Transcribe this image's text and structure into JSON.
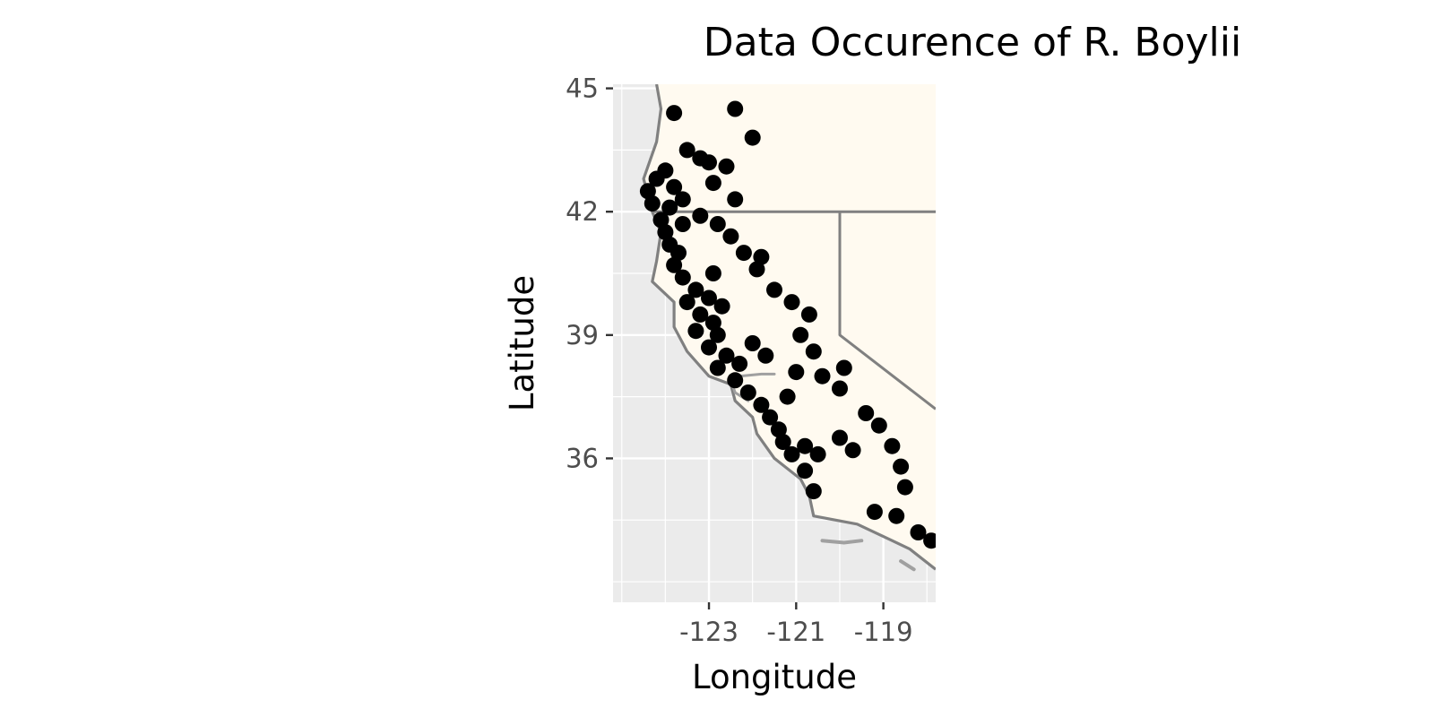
{
  "chart_data": {
    "type": "scatter",
    "title": "Data Occurence of R. Boylii",
    "xlabel": "Longitude",
    "ylabel": "Latitude",
    "xlim": [
      -125.2,
      -117.8
    ],
    "ylim": [
      32.5,
      45.1
    ],
    "x_ticks": [
      -123,
      -121,
      -119
    ],
    "x_tick_labels": [
      "-123",
      "-121",
      "-119"
    ],
    "y_ticks": [
      36,
      39,
      42,
      45
    ],
    "y_tick_labels": [
      "36",
      "39",
      "42",
      "45"
    ],
    "grid": true,
    "legend": "none",
    "colors": {
      "panel_background": "#ebebeb",
      "land_fill": "#fffaf0",
      "boundary": "#808080",
      "grid_major": "#ffffff",
      "points": "#000000"
    },
    "base_map": {
      "land_polygon": [
        [
          -124.2,
          45.1
        ],
        [
          -124.1,
          44.5
        ],
        [
          -124.2,
          43.7
        ],
        [
          -124.5,
          42.8
        ],
        [
          -124.3,
          42.0
        ],
        [
          -124.1,
          41.5
        ],
        [
          -124.2,
          40.8
        ],
        [
          -124.3,
          40.3
        ],
        [
          -123.8,
          39.8
        ],
        [
          -123.8,
          39.2
        ],
        [
          -123.5,
          38.6
        ],
        [
          -123.0,
          38.0
        ],
        [
          -122.5,
          37.8
        ],
        [
          -122.4,
          37.4
        ],
        [
          -122.0,
          37.0
        ],
        [
          -121.9,
          36.6
        ],
        [
          -121.5,
          36.0
        ],
        [
          -120.9,
          35.5
        ],
        [
          -120.7,
          35.1
        ],
        [
          -120.6,
          34.6
        ],
        [
          -119.6,
          34.4
        ],
        [
          -118.8,
          34.0
        ],
        [
          -118.4,
          33.8
        ],
        [
          -117.8,
          33.3
        ],
        [
          -117.8,
          45.1
        ]
      ],
      "coastline": [
        [
          -124.2,
          45.1
        ],
        [
          -124.1,
          44.5
        ],
        [
          -124.2,
          43.7
        ],
        [
          -124.5,
          42.8
        ],
        [
          -124.3,
          42.0
        ],
        [
          -124.1,
          41.5
        ],
        [
          -124.2,
          40.8
        ],
        [
          -124.3,
          40.3
        ],
        [
          -123.8,
          39.8
        ],
        [
          -123.8,
          39.2
        ],
        [
          -123.5,
          38.6
        ],
        [
          -123.0,
          38.0
        ],
        [
          -122.5,
          37.8
        ],
        [
          -122.4,
          37.4
        ],
        [
          -122.0,
          37.0
        ],
        [
          -121.9,
          36.6
        ],
        [
          -121.5,
          36.0
        ],
        [
          -120.9,
          35.5
        ],
        [
          -120.7,
          35.1
        ],
        [
          -120.6,
          34.6
        ],
        [
          -119.6,
          34.4
        ],
        [
          -118.8,
          34.0
        ],
        [
          -118.4,
          33.8
        ],
        [
          -117.8,
          33.3
        ]
      ],
      "state_borders": [
        [
          [
            -124.3,
            42.0
          ],
          [
            -120.0,
            42.0
          ],
          [
            -117.8,
            42.0
          ]
        ],
        [
          [
            -120.0,
            42.0
          ],
          [
            -120.0,
            39.0
          ],
          [
            -117.8,
            37.2
          ]
        ]
      ],
      "bays": [
        [
          [
            -122.5,
            37.9
          ],
          [
            -122.3,
            38.0
          ],
          [
            -121.8,
            38.05
          ],
          [
            -121.5,
            38.05
          ]
        ],
        [
          [
            -122.5,
            37.9
          ],
          [
            -122.4,
            37.6
          ],
          [
            -122.1,
            37.4
          ]
        ]
      ],
      "islands": [
        [
          [
            -120.4,
            34.0
          ],
          [
            -119.9,
            33.95
          ],
          [
            -119.5,
            34.0
          ]
        ],
        [
          [
            -118.6,
            33.5
          ],
          [
            -118.3,
            33.3
          ]
        ]
      ]
    },
    "points": [
      [
        -124.3,
        42.2
      ],
      [
        -124.4,
        42.5
      ],
      [
        -124.2,
        42.8
      ],
      [
        -124.0,
        43.0
      ],
      [
        -123.8,
        42.6
      ],
      [
        -123.6,
        42.3
      ],
      [
        -123.9,
        42.1
      ],
      [
        -124.1,
        41.8
      ],
      [
        -124.0,
        41.5
      ],
      [
        -123.9,
        41.2
      ],
      [
        -123.7,
        41.0
      ],
      [
        -123.8,
        40.7
      ],
      [
        -123.6,
        40.4
      ],
      [
        -123.3,
        40.1
      ],
      [
        -123.0,
        39.9
      ],
      [
        -123.5,
        39.8
      ],
      [
        -123.2,
        39.5
      ],
      [
        -122.9,
        39.3
      ],
      [
        -123.3,
        39.1
      ],
      [
        -122.8,
        39.0
      ],
      [
        -123.0,
        38.7
      ],
      [
        -122.6,
        38.5
      ],
      [
        -122.3,
        38.3
      ],
      [
        -122.8,
        38.2
      ],
      [
        -122.4,
        37.9
      ],
      [
        -122.1,
        37.6
      ],
      [
        -121.8,
        37.3
      ],
      [
        -121.6,
        37.0
      ],
      [
        -121.4,
        36.7
      ],
      [
        -121.3,
        36.4
      ],
      [
        -121.1,
        36.1
      ],
      [
        -120.8,
        36.3
      ],
      [
        -120.5,
        36.1
      ],
      [
        -120.8,
        35.7
      ],
      [
        -120.6,
        35.2
      ],
      [
        -120.0,
        36.5
      ],
      [
        -119.7,
        36.2
      ],
      [
        -119.4,
        37.1
      ],
      [
        -119.1,
        36.8
      ],
      [
        -118.8,
        36.3
      ],
      [
        -118.6,
        35.8
      ],
      [
        -118.5,
        35.3
      ],
      [
        -119.2,
        34.7
      ],
      [
        -118.7,
        34.6
      ],
      [
        -118.2,
        34.2
      ],
      [
        -117.9,
        34.0
      ],
      [
        -120.4,
        38.0
      ],
      [
        -120.0,
        37.7
      ],
      [
        -119.9,
        38.2
      ],
      [
        -120.6,
        38.6
      ],
      [
        -120.9,
        39.0
      ],
      [
        -120.7,
        39.5
      ],
      [
        -121.1,
        39.8
      ],
      [
        -121.5,
        40.1
      ],
      [
        -121.9,
        40.6
      ],
      [
        -122.2,
        41.0
      ],
      [
        -122.5,
        41.4
      ],
      [
        -122.8,
        41.7
      ],
      [
        -122.4,
        42.3
      ],
      [
        -122.9,
        42.7
      ],
      [
        -122.6,
        43.1
      ],
      [
        -123.2,
        43.3
      ],
      [
        -123.5,
        43.5
      ],
      [
        -123.0,
        43.2
      ],
      [
        -122.0,
        43.8
      ],
      [
        -122.4,
        44.5
      ],
      [
        -123.8,
        44.4
      ],
      [
        -121.8,
        40.9
      ],
      [
        -122.0,
        38.8
      ],
      [
        -121.7,
        38.5
      ],
      [
        -121.2,
        37.5
      ],
      [
        -122.9,
        40.5
      ],
      [
        -122.7,
        39.7
      ],
      [
        -123.6,
        41.7
      ],
      [
        -123.2,
        41.9
      ],
      [
        -121.0,
        38.1
      ]
    ]
  }
}
